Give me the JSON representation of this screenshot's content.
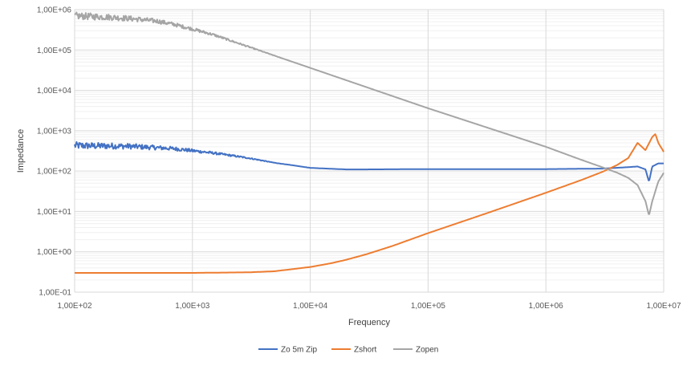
{
  "chart_data": {
    "type": "line",
    "title": "",
    "xlabel": "Frequency",
    "ylabel": "Impedance",
    "x_scale": "log",
    "y_scale": "log",
    "xlim": [
      100,
      10000000
    ],
    "ylim": [
      0.1,
      1000000
    ],
    "x_ticks": [
      "1,00E+02",
      "1,00E+03",
      "1,00E+04",
      "1,00E+05",
      "1,00E+06",
      "1,00E+07"
    ],
    "y_ticks": [
      "1,00E-01",
      "1,00E+00",
      "1,00E+01",
      "1,00E+02",
      "1,00E+03",
      "1,00E+04",
      "1,00E+05",
      "1,00E+06"
    ],
    "grid": true,
    "minor_grid": true,
    "legend_position": "bottom",
    "series": [
      {
        "name": "Zo 5m Zip",
        "color": "#4472C4",
        "noisy_below": 6000,
        "x": [
          100,
          150,
          200,
          300,
          500,
          700,
          1000,
          1500,
          2000,
          3000,
          5000,
          7000,
          10000,
          20000,
          30000,
          100000,
          1000000,
          3000000,
          5000000,
          6000000,
          7000000,
          7500000,
          8000000,
          9000000,
          10000000
        ],
        "y": [
          430,
          420,
          420,
          410,
          380,
          360,
          320,
          280,
          250,
          210,
          160,
          140,
          120,
          110,
          110,
          112,
          112,
          115,
          125,
          130,
          110,
          55,
          130,
          155,
          155
        ]
      },
      {
        "name": "Zshort",
        "color": "#ED7D31",
        "noisy_below": 0,
        "x": [
          100,
          1000,
          3000,
          5000,
          10000,
          15000,
          20000,
          30000,
          50000,
          100000,
          300000,
          1000000,
          2000000,
          3000000,
          4000000,
          5000000,
          6000000,
          7000000,
          8000000,
          8500000,
          9000000,
          10000000
        ],
        "y": [
          0.3,
          0.3,
          0.31,
          0.33,
          0.42,
          0.52,
          0.63,
          0.87,
          1.4,
          2.9,
          8.6,
          29,
          60,
          95,
          140,
          210,
          500,
          330,
          700,
          830,
          500,
          300
        ]
      },
      {
        "name": "Zopen",
        "color": "#A5A5A5",
        "noisy_below": 6000,
        "x": [
          100,
          200,
          300,
          500,
          700,
          1000,
          1500,
          2000,
          3000,
          5000,
          10000,
          20000,
          100000,
          1000000,
          2000000,
          3000000,
          4000000,
          5000000,
          6000000,
          7000000,
          7500000,
          8000000,
          9000000,
          10000000
        ],
        "y": [
          700000,
          650000,
          600000,
          520000,
          430000,
          330000,
          240000,
          180000,
          120000,
          72000,
          36000,
          18000,
          3600,
          400,
          190,
          125,
          92,
          68,
          45,
          18,
          8,
          18,
          55,
          90
        ]
      }
    ]
  }
}
